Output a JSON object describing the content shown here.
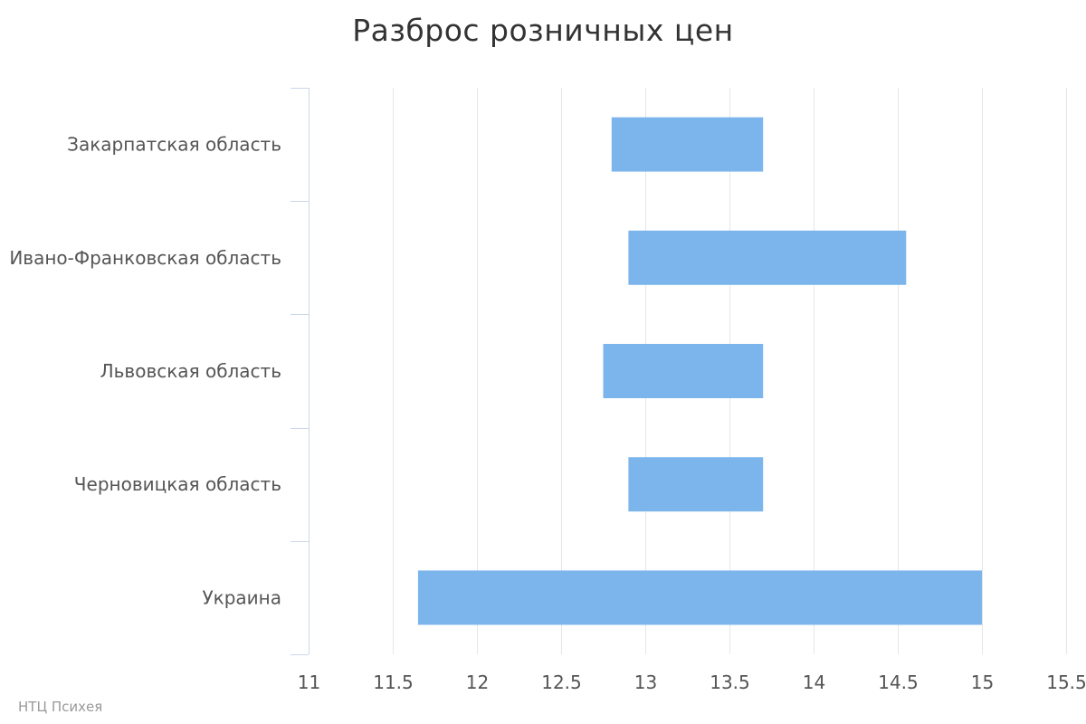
{
  "chart_data": {
    "type": "bar",
    "orientation": "horizontal",
    "title": "Разброс розничных цен",
    "categories": [
      "Закарпатская область",
      "Ивано-Франковская область",
      "Львовская область",
      "Черновицкая область",
      "Украина"
    ],
    "series": [
      {
        "ranges": [
          [
            12.8,
            13.7
          ],
          [
            12.9,
            14.55
          ],
          [
            12.75,
            13.7
          ],
          [
            12.9,
            13.7
          ],
          [
            11.65,
            15.0
          ]
        ],
        "color": "#7cb5ec"
      }
    ],
    "xlim": [
      11,
      15.5
    ],
    "xticks": [
      "11",
      "11.5",
      "12",
      "12.5",
      "13",
      "13.5",
      "14",
      "14.5",
      "15",
      "15.5"
    ],
    "grid": true,
    "legend": "none"
  },
  "credits": "НТЦ Психея",
  "colors": {
    "bar": "#7cb5ec",
    "grid": "#e6e6e6",
    "axis": "#ccd6eb"
  }
}
